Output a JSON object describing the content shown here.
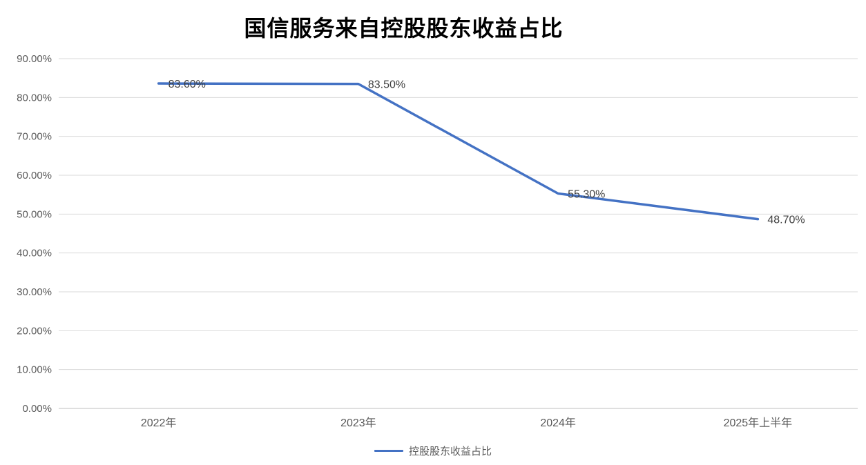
{
  "legend": {
    "label": "控股股东收益占比"
  },
  "colors": {
    "line": "#4472C4",
    "grid": "#D9D9D9",
    "axis_text": "#595959",
    "data_label_text": "#404040",
    "title_text": "#000000"
  },
  "chart_data": {
    "type": "line",
    "title": "国信服务来自控股股东收益占比",
    "categories": [
      "2022年",
      "2023年",
      "2024年",
      "2025年上半年"
    ],
    "series": [
      {
        "name": "控股股东收益占比",
        "values": [
          83.6,
          83.5,
          55.3,
          48.7
        ]
      }
    ],
    "data_labels": [
      "83.60%",
      "83.50%",
      "55.30%",
      "48.70%"
    ],
    "y_ticks": [
      "0.00%",
      "10.00%",
      "20.00%",
      "30.00%",
      "40.00%",
      "50.00%",
      "60.00%",
      "70.00%",
      "80.00%",
      "90.00%"
    ],
    "ylim": [
      0,
      90
    ],
    "grid": true,
    "legend_position": "bottom",
    "xlabel": "",
    "ylabel": ""
  }
}
